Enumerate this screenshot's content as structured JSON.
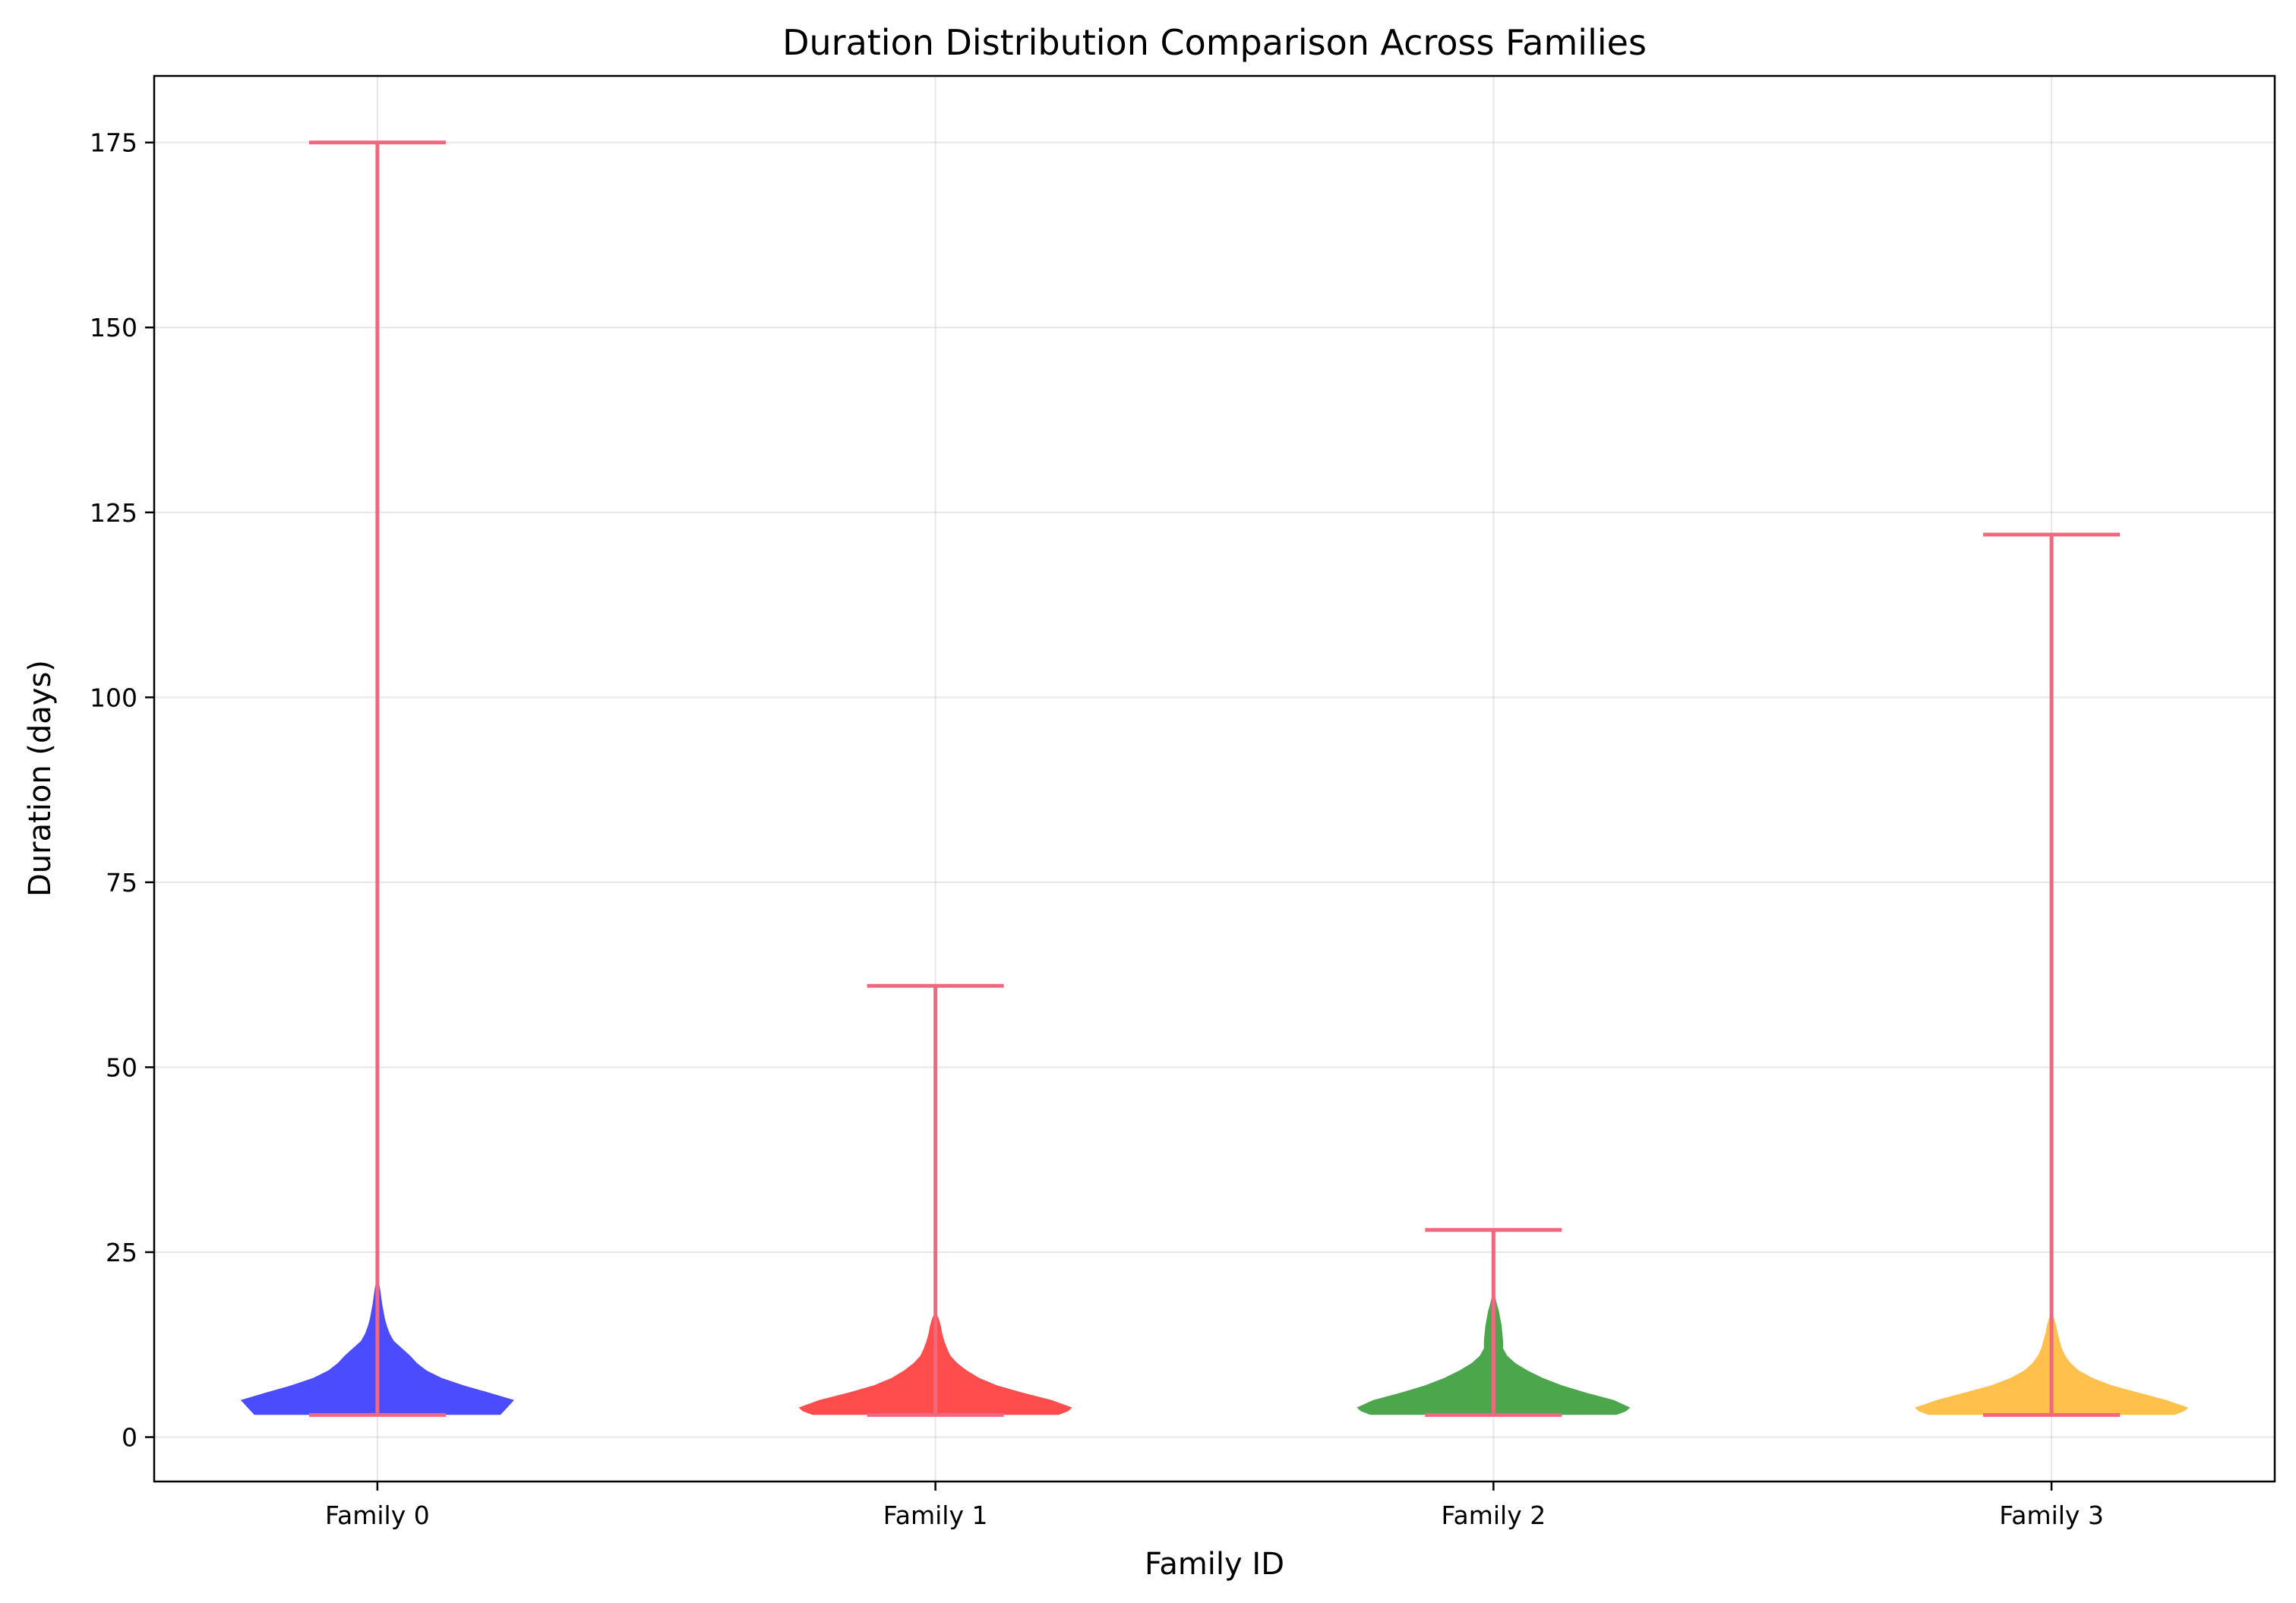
{
  "chart_data": {
    "type": "violin",
    "title": "Duration Distribution Comparison Across Families",
    "xlabel": "Family ID",
    "ylabel": "Duration (days)",
    "ylim": [
      -6,
      184
    ],
    "yticks": [
      0,
      25,
      50,
      75,
      100,
      125,
      150,
      175
    ],
    "grid": true,
    "categories": [
      "Family 0",
      "Family 1",
      "Family 2",
      "Family 3"
    ],
    "series": [
      {
        "min": 3,
        "max": 175,
        "color": "#0000ff",
        "profile": [
          [
            3,
            0.9
          ],
          [
            4,
            0.95
          ],
          [
            5,
            1.0
          ],
          [
            6,
            0.82
          ],
          [
            7,
            0.63
          ],
          [
            8,
            0.47
          ],
          [
            9,
            0.36
          ],
          [
            10,
            0.29
          ],
          [
            11,
            0.24
          ],
          [
            12,
            0.18
          ],
          [
            13,
            0.12
          ],
          [
            14,
            0.09
          ],
          [
            15,
            0.07
          ],
          [
            16,
            0.055
          ],
          [
            17,
            0.045
          ],
          [
            18,
            0.035
          ],
          [
            20,
            0.02
          ],
          [
            22,
            0.0
          ]
        ]
      },
      {
        "min": 3,
        "max": 61,
        "color": "#ff0000",
        "profile": [
          [
            3,
            0.9
          ],
          [
            3.5,
            0.97
          ],
          [
            4,
            1.0
          ],
          [
            5,
            0.85
          ],
          [
            6,
            0.64
          ],
          [
            7,
            0.45
          ],
          [
            8,
            0.32
          ],
          [
            9,
            0.23
          ],
          [
            10,
            0.16
          ],
          [
            11,
            0.11
          ],
          [
            12,
            0.085
          ],
          [
            13,
            0.065
          ],
          [
            14,
            0.05
          ],
          [
            15,
            0.04
          ],
          [
            16,
            0.025
          ],
          [
            17,
            0.0
          ]
        ]
      },
      {
        "min": 3,
        "max": 28,
        "color": "#008000",
        "profile": [
          [
            3,
            0.9
          ],
          [
            3.5,
            0.97
          ],
          [
            4,
            1.0
          ],
          [
            5,
            0.88
          ],
          [
            6,
            0.68
          ],
          [
            7,
            0.5
          ],
          [
            8,
            0.36
          ],
          [
            9,
            0.25
          ],
          [
            10,
            0.16
          ],
          [
            11,
            0.1
          ],
          [
            12,
            0.07
          ],
          [
            13,
            0.07
          ],
          [
            14,
            0.065
          ],
          [
            15,
            0.06
          ],
          [
            16,
            0.05
          ],
          [
            17,
            0.04
          ],
          [
            18,
            0.025
          ],
          [
            19,
            0.012
          ],
          [
            20,
            0.0
          ]
        ]
      },
      {
        "min": 3,
        "max": 122,
        "color": "#ffa500",
        "profile": [
          [
            3,
            0.9
          ],
          [
            3.5,
            0.97
          ],
          [
            4,
            1.0
          ],
          [
            5,
            0.84
          ],
          [
            6,
            0.64
          ],
          [
            7,
            0.44
          ],
          [
            8,
            0.3
          ],
          [
            9,
            0.2
          ],
          [
            10,
            0.14
          ],
          [
            11,
            0.1
          ],
          [
            12,
            0.075
          ],
          [
            13,
            0.06
          ],
          [
            14,
            0.045
          ],
          [
            15,
            0.035
          ],
          [
            16,
            0.02
          ],
          [
            17,
            0.0
          ]
        ]
      }
    ],
    "line_color": "#f0687f"
  }
}
